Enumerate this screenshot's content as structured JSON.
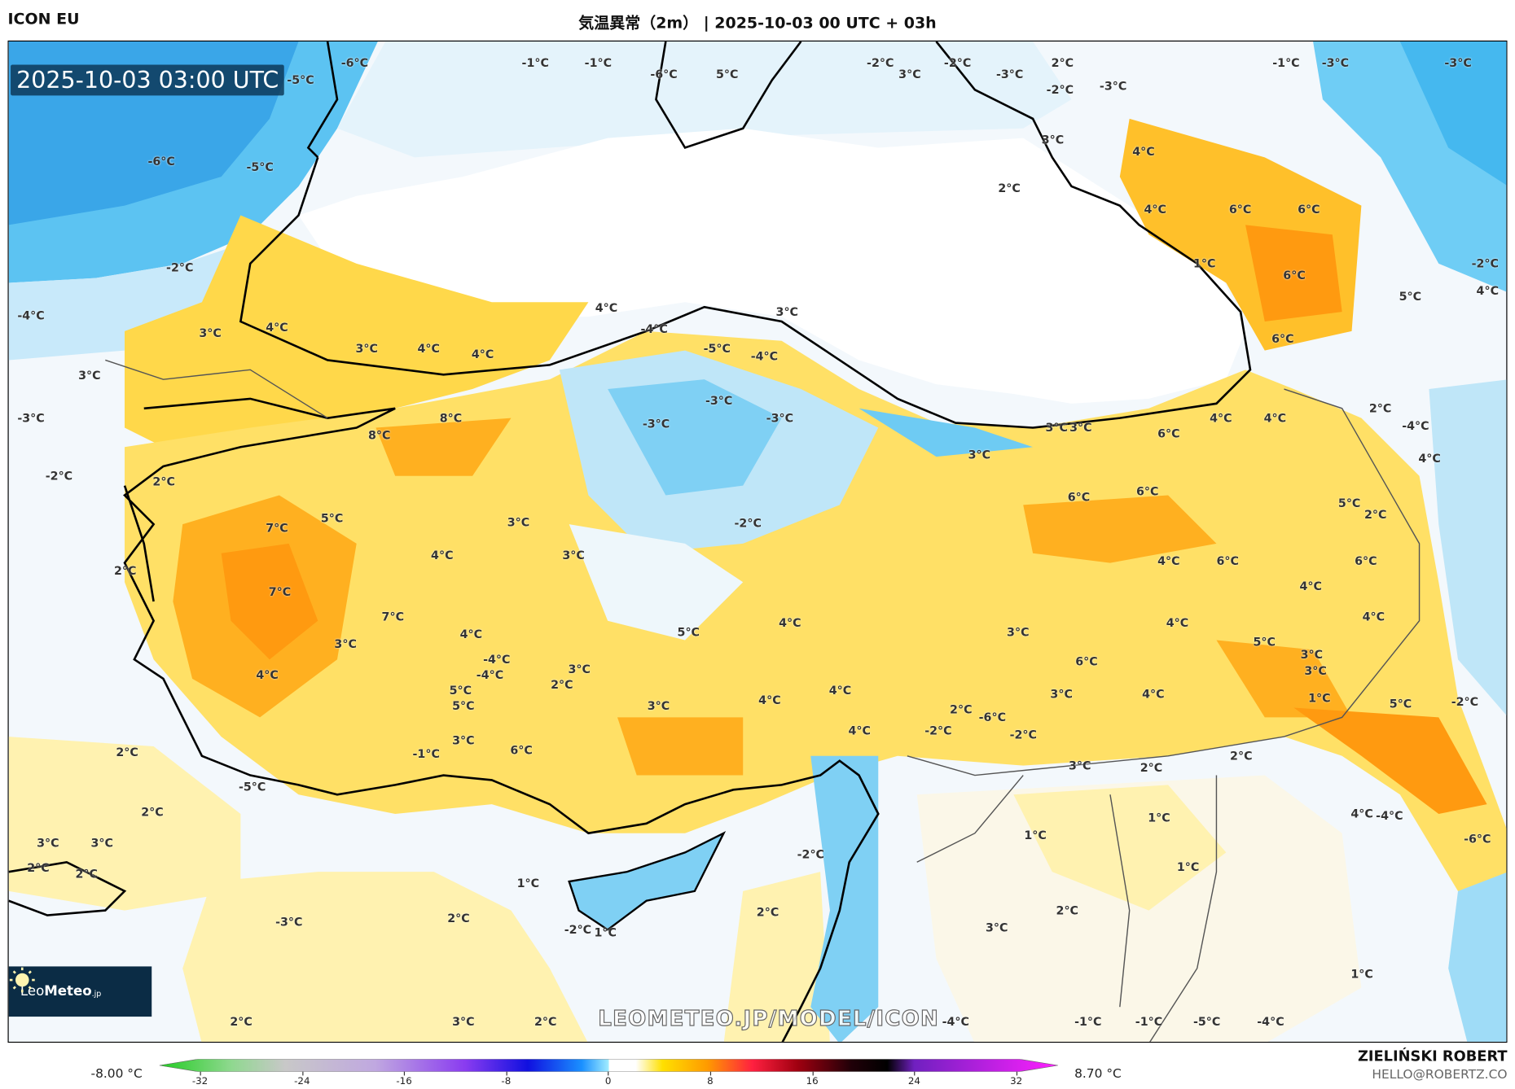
{
  "header": {
    "model": "ICON EU",
    "title": "気温異常（2m） | 2025-10-03 00 UTC + 03h"
  },
  "map": {
    "valid_time": "2025-10-03 03:00 UTC",
    "watermark": "LEOMETEO.JP/MODEL/ICON",
    "logo": {
      "light": "Leo",
      "bold": "Meteo",
      "suffix": ".jp"
    },
    "contour_labels": [
      "-1°C",
      "-1°C",
      "-6°C",
      "5°C",
      "-2°C",
      "3°C",
      "-2°C",
      "-3°C",
      "2°C",
      "-2°C",
      "-3°C",
      "-1°C",
      "-3°C",
      "-3°C",
      "-6°C",
      "-5°C",
      "-5°C",
      "-6°C",
      "3°C",
      "4°C",
      "2°C",
      "4°C",
      "6°C",
      "6°C",
      "1°C",
      "6°C",
      "-2°C",
      "5°C",
      "4°C",
      "4°C",
      "3°C",
      "3°C",
      "3°C",
      "4°C",
      "4°C",
      "-3°C",
      "-4°C",
      "-2°C",
      "-4°C",
      "-5°C",
      "-3°C",
      "6°C",
      "3°C",
      "8°C",
      "8°C",
      "-3°C",
      "-3°C",
      "-4°C",
      "3°C",
      "4°C",
      "6°C",
      "4°C",
      "3°C",
      "3°C",
      "6°C",
      "6°C",
      "5°C",
      "4°C",
      "7°C",
      "5°C",
      "3°C",
      "4°C",
      "2°C",
      "2°C",
      "-2°C",
      "-4°C",
      "2°C",
      "4°C",
      "2°C",
      "7°C",
      "3°C",
      "7°C",
      "3°C",
      "3°C",
      "4°C",
      "-2°C",
      "6°C",
      "4°C",
      "4°C",
      "6°C",
      "4°C",
      "5°C",
      "4°C",
      "3°C",
      "5°C",
      "6°C",
      "-4°C",
      "4°C",
      "5°C",
      "3°C",
      "2°C",
      "4°C",
      "5°C",
      "2°C",
      "3°C",
      "4°C",
      "3°C",
      "4°C",
      "5°C",
      "-2°C",
      "-1°C",
      "3°C",
      "6°C",
      "-4°C",
      "4°C",
      "3°C",
      "-5°C",
      "-2°C",
      "4°C",
      "2°C",
      "3°C",
      "2°C",
      "2°C",
      "2°C",
      "3°C",
      "3°C",
      "2°C",
      "1°C",
      "1°C",
      "1°C",
      "1°C",
      "2°C",
      "2°C",
      "1°C",
      "-3°C",
      "2°C",
      "3°C",
      "1°C",
      "4°C",
      "-6°C",
      "-6°C",
      "2°C",
      "2°C",
      "1°C",
      "-4°C",
      "3°C",
      "2°C",
      "-2°C",
      "-2°C",
      "-2°C",
      "-1°C",
      "-1°C",
      "-5°C",
      "-4°C",
      "-4°C"
    ]
  },
  "colorbar": {
    "min_label": "-8.00 °C",
    "max_label": "8.70 °C",
    "ticks": [
      "-32",
      "-24",
      "-16",
      "-8",
      "0",
      "8",
      "16",
      "24",
      "32"
    ]
  },
  "credits": {
    "author": "ZIELIŃSKI ROBERT",
    "email": "HELLO@ROBERTZ.CO"
  }
}
